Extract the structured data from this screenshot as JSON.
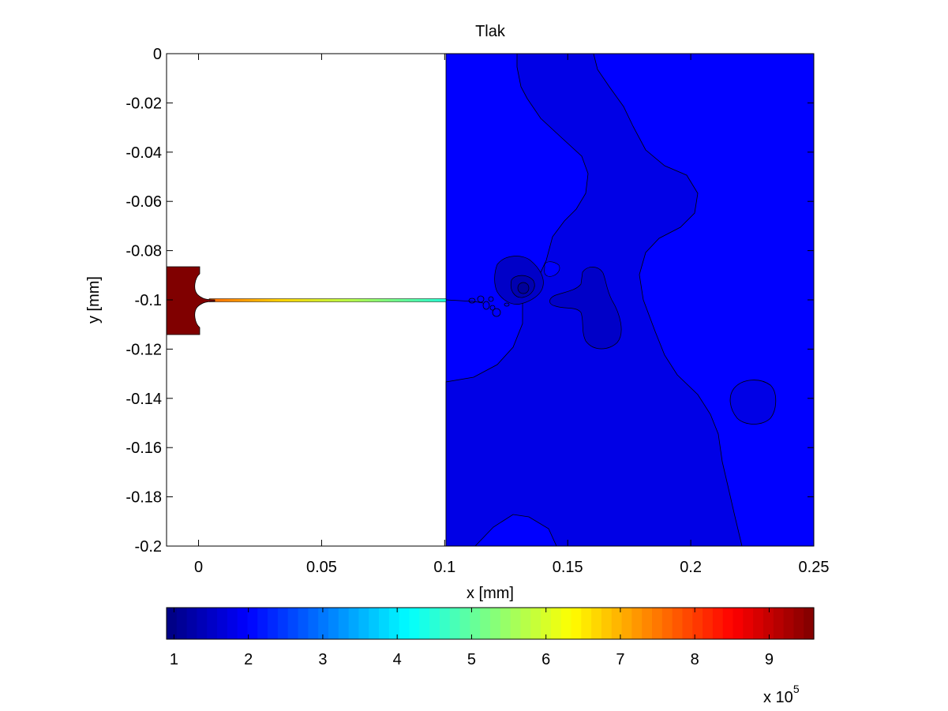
{
  "chart_data": {
    "type": "contour",
    "title": "Tlak",
    "xlabel": "x [mm]",
    "ylabel": "y [mm]",
    "xlim": [
      -0.013,
      0.25
    ],
    "ylim": [
      -0.2,
      0
    ],
    "xticks": [
      0,
      0.05,
      0.1,
      0.15,
      0.2,
      0.25
    ],
    "xtick_labels": [
      "0",
      "0.05",
      "0.1",
      "0.15",
      "0.2",
      "0.25"
    ],
    "yticks": [
      0,
      -0.02,
      -0.04,
      -0.06,
      -0.08,
      -0.1,
      -0.12,
      -0.14,
      -0.16,
      -0.18,
      -0.2
    ],
    "ytick_labels": [
      "0",
      "-0.02",
      "-0.04",
      "-0.06",
      "-0.08",
      "-0.1",
      "-0.12",
      "-0.14",
      "-0.16",
      "-0.18",
      "-0.2"
    ],
    "colorbar": {
      "colormap": "jet",
      "range": [
        0.9,
        9.6
      ],
      "ticks": [
        1,
        2,
        3,
        4,
        5,
        6,
        7,
        8,
        9
      ],
      "tick_labels": [
        "1",
        "2",
        "3",
        "4",
        "5",
        "6",
        "7",
        "8",
        "9"
      ],
      "multiplier_base": "x 10",
      "multiplier_exp": "5",
      "placement": "bottom"
    },
    "regions": {
      "nozzle_reservoir": {
        "x": [
          -0.013,
          0
        ],
        "y": [
          -0.113,
          -0.087
        ],
        "value": 9.5
      },
      "needle_channel": {
        "x": [
          0.005,
          0.1
        ],
        "y": -0.1,
        "value_start": 6.5,
        "value_end": 3.6
      },
      "domain_right": {
        "x": [
          0.1,
          0.25
        ],
        "y": [
          -0.2,
          0
        ],
        "value": 1.5
      },
      "low_pressure_zones": [
        {
          "label": "central band",
          "value": 1.2
        },
        {
          "label": "low lobe near x=0.13",
          "value": 0.95
        },
        {
          "label": "low lobe near x=0.16",
          "value": 1.0
        },
        {
          "label": "island near x=0.225",
          "value": 1.2
        }
      ]
    },
    "grid": false,
    "legend": "none"
  },
  "colors": {
    "background": "#ffffff",
    "axes": "#000000",
    "bright_blue": "#0000ff",
    "mid_blue": "#0000e6",
    "dark_blue": "#0000c8",
    "reservoir": "#800000"
  }
}
